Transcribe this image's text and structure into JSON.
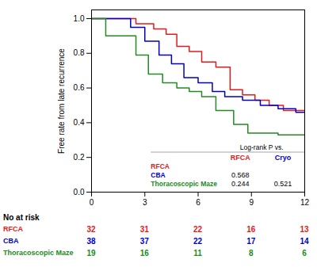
{
  "chart_data": {
    "type": "step",
    "ylabel": "Free rate from late recurrence",
    "series": [
      {
        "name": "RFCA",
        "color": "#e41a1c",
        "x": [
          0,
          2.5,
          2.5,
          3.5,
          3.5,
          4.2,
          4.2,
          4.8,
          4.8,
          5.5,
          5.5,
          6.2,
          6.2,
          7.0,
          7.0,
          7.8,
          7.8,
          8.5,
          8.5,
          9.2,
          9.2,
          10.0,
          10.0,
          10.8,
          10.8,
          11.5,
          11.5,
          12
        ],
        "values": [
          1.0,
          1.0,
          0.97,
          0.97,
          0.94,
          0.94,
          0.91,
          0.91,
          0.84,
          0.84,
          0.81,
          0.81,
          0.75,
          0.75,
          0.72,
          0.72,
          0.59,
          0.59,
          0.56,
          0.56,
          0.53,
          0.53,
          0.5,
          0.5,
          0.47,
          0.47,
          0.47,
          0.47
        ]
      },
      {
        "name": "CBA",
        "color": "#0000cc",
        "x": [
          0,
          2.2,
          2.2,
          3.0,
          3.0,
          3.8,
          3.8,
          4.5,
          4.5,
          5.2,
          5.2,
          6.0,
          6.0,
          6.8,
          6.8,
          7.5,
          7.5,
          8.5,
          8.5,
          9.5,
          9.5,
          10.5,
          10.5,
          11.5,
          11.5,
          12
        ],
        "values": [
          1.0,
          1.0,
          0.95,
          0.95,
          0.87,
          0.87,
          0.79,
          0.79,
          0.74,
          0.74,
          0.66,
          0.66,
          0.63,
          0.63,
          0.58,
          0.58,
          0.55,
          0.55,
          0.53,
          0.53,
          0.5,
          0.5,
          0.48,
          0.48,
          0.46,
          0.46
        ]
      },
      {
        "name": "Thoracoscopic Maze",
        "color": "#228B22",
        "x": [
          0,
          0.8,
          0.8,
          2.5,
          2.5,
          3.2,
          3.2,
          4.0,
          4.0,
          4.8,
          4.8,
          5.5,
          5.5,
          6.2,
          6.2,
          7.0,
          7.0,
          8.0,
          8.0,
          8.8,
          8.8,
          9.5,
          9.5,
          10.5,
          10.5,
          12
        ],
        "values": [
          1.0,
          1.0,
          0.9,
          0.9,
          0.79,
          0.79,
          0.68,
          0.68,
          0.63,
          0.63,
          0.6,
          0.6,
          0.58,
          0.58,
          0.55,
          0.55,
          0.47,
          0.47,
          0.39,
          0.39,
          0.34,
          0.34,
          0.34,
          0.34,
          0.33,
          0.33
        ]
      }
    ],
    "xlim": [
      0,
      12
    ],
    "xticks": [
      0,
      3,
      6,
      9,
      12
    ],
    "ylim": [
      0.0,
      1.05
    ],
    "yticks": [
      {
        "value": 0.0,
        "label": "0.0"
      },
      0.2,
      0.4,
      0.6,
      0.8,
      {
        "value": 1.0,
        "label": "1.0"
      }
    ],
    "grid": false,
    "table": {
      "title": "Log-rank P vs.",
      "columns": [
        "RFCA",
        "Cryo"
      ],
      "rows": [
        "RFCA",
        "CBA",
        "Thoracoscopic Maze"
      ],
      "values": [
        [
          null,
          null
        ],
        [
          0.568,
          null
        ],
        [
          0.244,
          0.521
        ]
      ]
    },
    "at_risk": {
      "title": "No at risk",
      "x": [
        0,
        3,
        6,
        9,
        12
      ],
      "values": [
        [
          32,
          31,
          22,
          16,
          13
        ],
        [
          38,
          37,
          22,
          17,
          14
        ],
        [
          19,
          16,
          11,
          8,
          6
        ]
      ]
    }
  }
}
